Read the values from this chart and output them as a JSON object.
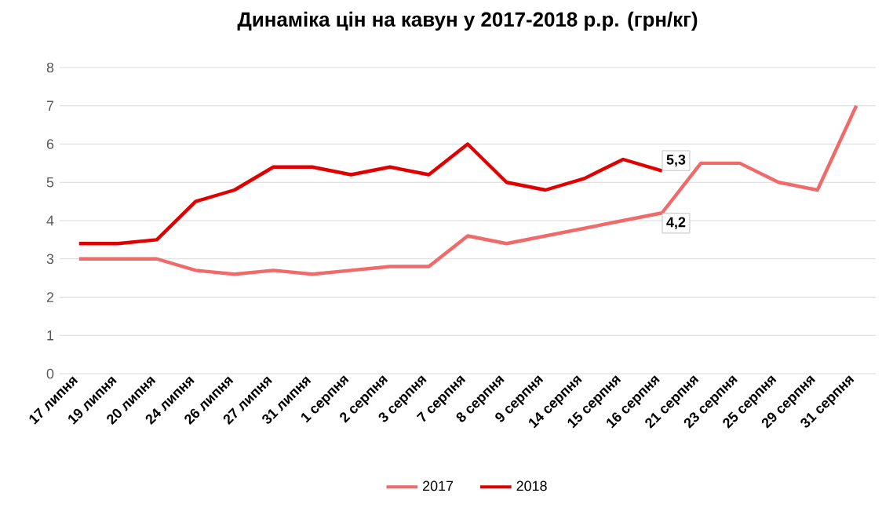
{
  "chart_data": {
    "type": "line",
    "title": "Динаміка цін на кавун у 2017-2018 р.р. (грн/кг)",
    "categories": [
      "17 липня",
      "19 липня",
      "20 липня",
      "24 липня",
      "26 липня",
      "27 липня",
      "31 липня",
      "1 серпня",
      "2 серпня",
      "3 серпня",
      "7 серпня",
      "8 серпня",
      "9 серпня",
      "14 серпня",
      "15 серпня",
      "16 серпня",
      "21 серпня",
      "23 серпня",
      "25 серпня",
      "29 серпня",
      "31 серпня"
    ],
    "series": [
      {
        "name": "2017",
        "color": "#f06a6a",
        "values": [
          3.0,
          3.0,
          3.0,
          2.7,
          2.6,
          2.7,
          2.6,
          2.7,
          2.8,
          2.8,
          3.6,
          3.4,
          3.6,
          3.8,
          4.0,
          4.2,
          5.5,
          5.5,
          5.0,
          4.8,
          7.0
        ],
        "value_labels": [
          null,
          null,
          null,
          null,
          null,
          null,
          null,
          null,
          null,
          null,
          null,
          null,
          null,
          null,
          null,
          "4,2",
          null,
          null,
          null,
          null,
          null
        ]
      },
      {
        "name": "2018",
        "color": "#e00000",
        "values": [
          3.4,
          3.4,
          3.5,
          4.5,
          4.8,
          5.4,
          5.4,
          5.2,
          5.4,
          5.2,
          6.0,
          5.0,
          4.8,
          5.1,
          5.6,
          5.3,
          null,
          null,
          null,
          null,
          null
        ],
        "value_labels": [
          null,
          null,
          null,
          null,
          null,
          null,
          null,
          null,
          null,
          null,
          null,
          null,
          null,
          null,
          null,
          "5,3",
          null,
          null,
          null,
          null,
          null
        ]
      }
    ],
    "ylim": [
      0,
      8
    ],
    "yticks": [
      0,
      1,
      2,
      3,
      4,
      5,
      6,
      7,
      8
    ],
    "grid": "y",
    "legend": "bottom",
    "marker": "none",
    "line_style": "solid"
  }
}
